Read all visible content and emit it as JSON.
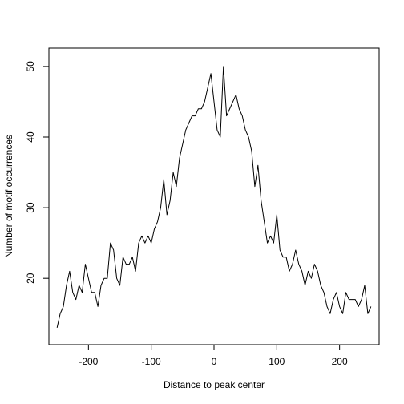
{
  "chart_data": {
    "type": "line",
    "x_label": "Distance to peak center",
    "y_label": "Number of motif occurrences",
    "x": [
      -250,
      -245,
      -240,
      -235,
      -230,
      -225,
      -220,
      -215,
      -210,
      -205,
      -200,
      -195,
      -190,
      -185,
      -180,
      -175,
      -170,
      -165,
      -160,
      -155,
      -150,
      -145,
      -140,
      -135,
      -130,
      -125,
      -120,
      -115,
      -110,
      -105,
      -100,
      -95,
      -90,
      -85,
      -80,
      -75,
      -70,
      -65,
      -60,
      -55,
      -50,
      -45,
      -40,
      -35,
      -30,
      -25,
      -20,
      -15,
      -10,
      -5,
      0,
      5,
      10,
      15,
      20,
      25,
      30,
      35,
      40,
      45,
      50,
      55,
      60,
      65,
      70,
      75,
      80,
      85,
      90,
      95,
      100,
      105,
      110,
      115,
      120,
      125,
      130,
      135,
      140,
      145,
      150,
      155,
      160,
      165,
      170,
      175,
      180,
      185,
      190,
      195,
      200,
      205,
      210,
      215,
      220,
      225,
      230,
      235,
      240,
      245,
      250
    ],
    "series": [
      {
        "color": "#000000",
        "values": [
          13,
          15,
          16,
          19,
          21,
          18,
          17,
          19,
          18,
          22,
          20,
          18,
          18,
          16,
          19,
          20,
          20,
          25,
          24,
          20,
          19,
          23,
          22,
          22,
          23,
          21,
          25,
          26,
          25,
          26,
          25,
          27,
          28,
          30,
          34,
          29,
          31,
          35,
          33,
          37,
          39,
          41,
          42,
          43,
          43,
          44,
          44,
          45,
          47,
          49,
          45,
          41,
          40,
          50,
          43,
          44,
          45,
          46,
          44,
          43,
          41,
          40,
          38,
          33,
          36,
          31,
          28,
          25,
          26,
          25,
          29,
          24,
          23,
          23,
          21,
          22,
          24,
          22,
          21,
          19,
          21,
          20,
          22,
          21,
          19,
          18,
          16,
          15,
          17,
          18,
          16,
          15,
          18,
          17,
          17,
          17,
          16,
          17,
          19,
          15,
          16
        ]
      }
    ],
    "xlim": [
      -263,
      263
    ],
    "ylim": [
      10.6,
      52.6
    ],
    "xticks": [
      -200,
      -100,
      0,
      100,
      200
    ],
    "yticks": [
      20,
      30,
      40,
      50
    ]
  }
}
